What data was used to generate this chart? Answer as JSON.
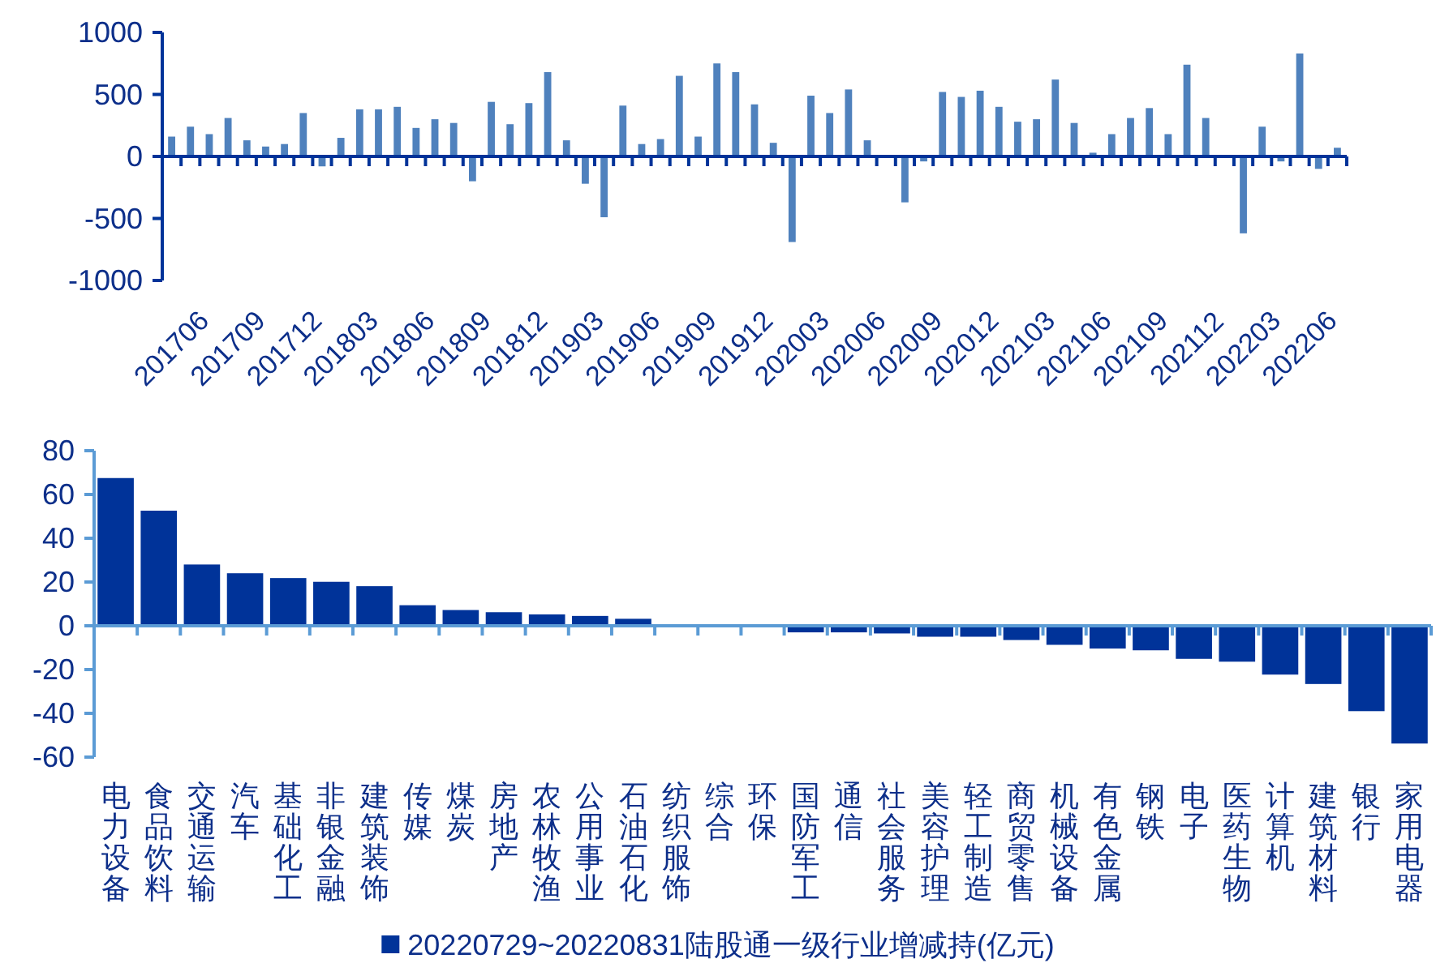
{
  "chart_data": [
    {
      "type": "bar",
      "categories": [
        "201706",
        null,
        null,
        "201709",
        null,
        null,
        "201712",
        null,
        null,
        "201803",
        null,
        null,
        "201806",
        null,
        null,
        "201809",
        null,
        null,
        "201812",
        null,
        null,
        "201903",
        null,
        null,
        "201906",
        null,
        null,
        "201909",
        null,
        null,
        "201912",
        null,
        null,
        "202003",
        null,
        null,
        "202006",
        null,
        null,
        "202009",
        null,
        null,
        "202012",
        null,
        null,
        "202103",
        null,
        null,
        "202106",
        null,
        null,
        "202109",
        null,
        null,
        "202112",
        null,
        null,
        "202203",
        null,
        null,
        "202206",
        null,
        null
      ],
      "values": [
        160,
        240,
        180,
        310,
        130,
        80,
        100,
        350,
        -80,
        150,
        380,
        380,
        400,
        230,
        300,
        270,
        -200,
        440,
        260,
        430,
        680,
        130,
        -220,
        -490,
        410,
        100,
        140,
        650,
        160,
        750,
        680,
        420,
        110,
        -690,
        490,
        350,
        540,
        130,
        5,
        -370,
        -40,
        520,
        480,
        530,
        400,
        280,
        300,
        620,
        270,
        30,
        180,
        310,
        390,
        180,
        740,
        310,
        5,
        -620,
        240,
        -40,
        830,
        -100,
        70
      ],
      "color": "#4f81bd",
      "ylim": [
        -1000,
        1000
      ],
      "yticks": [
        -1000,
        -500,
        0,
        500,
        1000
      ],
      "grid": false,
      "ref_lines": [
        {
          "axis": "y",
          "value": 0,
          "color": "#003399"
        }
      ]
    },
    {
      "type": "bar",
      "categories": [
        "电力设备",
        "食品饮料",
        "交通运输",
        "汽车",
        "基础化工",
        "非银金融",
        "建筑装饰",
        "传媒",
        "煤炭",
        "房地产",
        "农林牧渔",
        "公用事业",
        "石油石化",
        "纺织服饰",
        "综合",
        "环保",
        "国防军工",
        "通信",
        "社会服务",
        "美容护理",
        "轻工制造",
        "商贸零售",
        "机械设备",
        "有色金属",
        "钢铁",
        "电子",
        "医药生物",
        "计算机",
        "建筑材料",
        "银行",
        "家用电器"
      ],
      "series": [
        {
          "name": "20220729~20220831陆股通一级行业增减持(亿元)",
          "color": "#003399",
          "values": [
            67.5,
            52.6,
            28,
            24,
            21.8,
            20.1,
            18.1,
            9.4,
            7.2,
            6.2,
            5.2,
            4.5,
            3.2,
            0.5,
            0.1,
            -0.1,
            -3,
            -3,
            -3.5,
            -5,
            -5,
            -6.5,
            -8.7,
            -10.4,
            -11.2,
            -15.1,
            -16.4,
            -22.3,
            -26.6,
            -39,
            -53.8
          ]
        }
      ],
      "ylim": [
        -60,
        80
      ],
      "yticks": [
        -60,
        -40,
        -20,
        0,
        20,
        40,
        60,
        80
      ],
      "grid": false,
      "legend": "bottom",
      "ref_lines": [
        {
          "axis": "y",
          "value": 0,
          "color": "#5b9bd5"
        }
      ]
    }
  ]
}
